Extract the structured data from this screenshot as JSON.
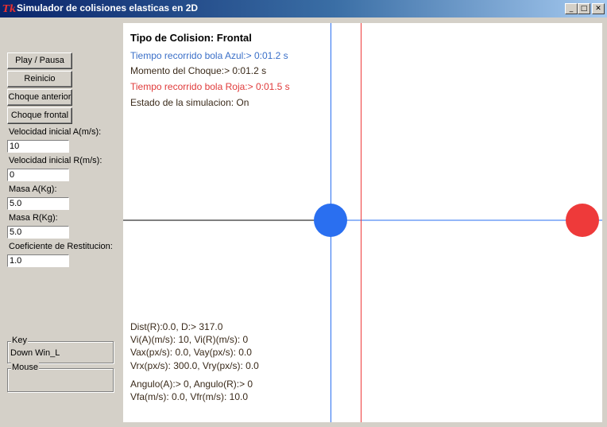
{
  "window": {
    "title": "Simulador de colisiones elasticas en 2D",
    "icon": "Tk",
    "controls": [
      "minimize-icon",
      "maximize-icon",
      "close-icon"
    ]
  },
  "controls": {
    "play_pause": "Play / Pausa",
    "restart": "Reinicio",
    "previous_collision": "Choque anterior",
    "frontal_collision": "Choque frontal",
    "velocity_a_label": "Velocidad inicial A(m/s):",
    "velocity_a_value": "10",
    "velocity_r_label": "Velocidad inicial R(m/s):",
    "velocity_r_value": "0",
    "mass_a_label": "Masa A(Kg):",
    "mass_a_value": "5.0",
    "mass_r_label": "Masa R(Kg):",
    "mass_r_value": "5.0",
    "restitution_label": "Coeficiente de Restitucion:",
    "restitution_value": "1.0"
  },
  "key_group": {
    "title": "Key",
    "value": "Down Win_L"
  },
  "mouse_group": {
    "title": "Mouse",
    "value": ""
  },
  "canvas": {
    "collision_type": "Tipo de Colision: Frontal",
    "blue_time": "Tiempo recorrido bola Azul:> 0:01.2 s",
    "impact_moment": "Momento del Choque:> 0:01.2 s",
    "red_time": "Tiempo recorrido bola Roja:> 0:01.5 s",
    "status": "Estado de la simulacion: On",
    "dist": "Dist(R):0.0, D:> 317.0",
    "vi": "Vi(A)(m/s): 10, Vi(R)(m/s): 0",
    "va": "Vax(px/s): 0.0, Vay(px/s): 0.0",
    "vr": "Vrx(px/s): 300.0, Vry(px/s): 0.0",
    "angles": "Angulo(A):> 0, Angulo(R):> 0",
    "vf": "Vfa(m/s): 0.0, Vfr(m/s): 10.0"
  },
  "colors": {
    "blue": "#2a6ff0",
    "red": "#ee3a3a",
    "blue_text": "#3a6fc8",
    "red_text": "#e03a3a",
    "dark_text": "#3a2a1a"
  }
}
